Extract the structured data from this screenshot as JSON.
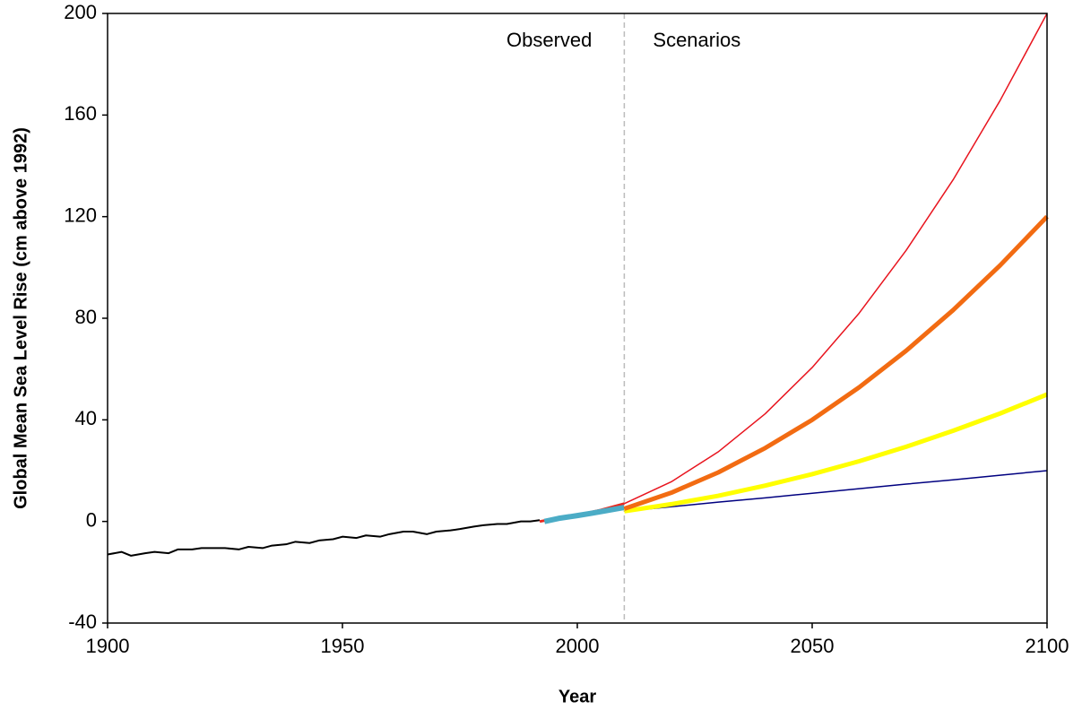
{
  "chart_data": {
    "type": "line",
    "x_label": "Year",
    "y_label": "Global Mean Sea Level Rise (cm above 1992)",
    "xlim": [
      1900,
      2100
    ],
    "xticks": [
      1900,
      1950,
      2000,
      2050,
      2100
    ],
    "ylim": [
      -40,
      200
    ],
    "yticks": [
      -40,
      0,
      40,
      80,
      120,
      160,
      200
    ],
    "divider_x": 2010,
    "annotations": [
      {
        "text": "Observed",
        "x": 2010,
        "side": "left"
      },
      {
        "text": "Scenarios",
        "x": 2010,
        "side": "right"
      }
    ],
    "series": [
      {
        "color": "#000000",
        "x": [
          1900,
          1903,
          1905,
          1908,
          1910,
          1913,
          1915,
          1918,
          1920,
          1923,
          1925,
          1928,
          1930,
          1933,
          1935,
          1938,
          1940,
          1943,
          1945,
          1948,
          1950,
          1953,
          1955,
          1958,
          1960,
          1963,
          1965,
          1968,
          1970,
          1973,
          1975,
          1978,
          1980,
          1983,
          1985,
          1988,
          1990,
          1992
        ],
        "values": [
          -13,
          -12,
          -13.5,
          -12.5,
          -12,
          -12.5,
          -11,
          -11,
          -10.5,
          -10.5,
          -10.5,
          -11,
          -10,
          -10.5,
          -9.5,
          -9,
          -8,
          -8.5,
          -7.5,
          -7,
          -6,
          -6.5,
          -5.5,
          -6,
          -5,
          -4,
          -4,
          -5,
          -4,
          -3.5,
          -3,
          -2,
          -1.5,
          -1,
          -1,
          0,
          0,
          0.5
        ]
      },
      {
        "color": "#e8281e",
        "x": [
          1992,
          1995,
          2000,
          2005,
          2010
        ],
        "values": [
          0,
          1,
          2.5,
          4.5,
          7
        ]
      },
      {
        "color": "#4bacc6",
        "x": [
          1993,
          1996,
          2000,
          2003,
          2006,
          2010
        ],
        "values": [
          0,
          1.2,
          2.3,
          3.2,
          4.2,
          5.5
        ]
      },
      {
        "color": "#000080",
        "x": [
          2010,
          2020,
          2030,
          2040,
          2050,
          2060,
          2070,
          2080,
          2090,
          2100
        ],
        "values": [
          4,
          5.8,
          7.6,
          9.3,
          11.1,
          12.9,
          14.7,
          16.4,
          18.2,
          20
        ]
      },
      {
        "color": "#ffff00",
        "x": [
          2010,
          2020,
          2030,
          2040,
          2050,
          2060,
          2070,
          2080,
          2090,
          2100
        ],
        "values": [
          4,
          6.8,
          10.1,
          14.1,
          18.6,
          23.7,
          29.4,
          35.7,
          42.5,
          50
        ]
      },
      {
        "color": "#f26b12",
        "x": [
          2010,
          2020,
          2030,
          2040,
          2050,
          2060,
          2070,
          2080,
          2090,
          2100
        ],
        "values": [
          5,
          11.3,
          19.3,
          28.9,
          40,
          52.8,
          67.2,
          83.2,
          100.8,
          120
        ]
      },
      {
        "color": "#e8141e",
        "x": [
          2010,
          2020,
          2030,
          2040,
          2050,
          2060,
          2070,
          2080,
          2090,
          2100
        ],
        "values": [
          7,
          15.6,
          27.4,
          42.4,
          60.6,
          82,
          106.7,
          134.5,
          165.7,
          200
        ]
      }
    ]
  }
}
